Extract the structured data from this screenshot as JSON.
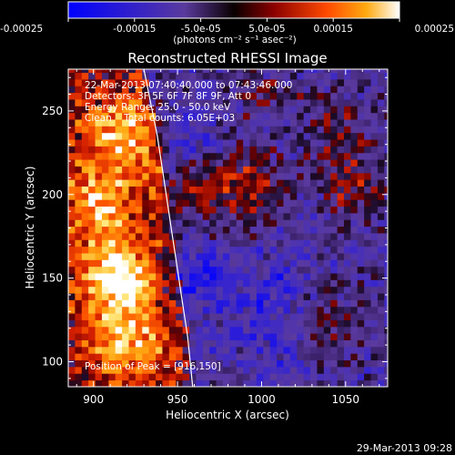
{
  "chart_data": {
    "type": "heatmap",
    "title": "Reconstructed RHESSI Image",
    "xlabel": "Heliocentric X (arcsec)",
    "ylabel": "Heliocentric Y (arcsec)",
    "xlim": [
      885,
      1075
    ],
    "ylim": [
      85,
      275
    ],
    "x_ticks": [
      900,
      950,
      1000,
      1050
    ],
    "y_ticks": [
      100,
      150,
      200,
      250
    ],
    "colorbar": {
      "min": -0.00025,
      "max": 0.00025,
      "ticks": [
        {
          "value": -0.00025,
          "label": "-0.00025"
        },
        {
          "value": -0.00015,
          "label": "-0.00015"
        },
        {
          "value": -5e-05,
          "label": "-5.0e-05"
        },
        {
          "value": 5e-05,
          "label": "5.0e-05"
        },
        {
          "value": 0.00015,
          "label": "0.00015"
        },
        {
          "value": 0.00025,
          "label": "0.00025"
        }
      ],
      "unit_label": "(photons cm⁻² s⁻¹ asec⁻²)"
    },
    "annotations": [
      "22-Mar-2013 07:40:40.000 to 07:43:46.000",
      "Detectors: 3F 5F 6F 7F 8F 9F, Att 0",
      "Energy Range: 25.0 - 50.0 keV",
      "Clean    Total counts: 6.05E+03"
    ],
    "peak_label": "Position of Peak = [916,150]",
    "peak": [
      916,
      150
    ],
    "limb_curve": [
      [
        930,
        275
      ],
      [
        934,
        255
      ],
      [
        938,
        235
      ],
      [
        941,
        215
      ],
      [
        944,
        195
      ],
      [
        947,
        175
      ],
      [
        950,
        155
      ],
      [
        953,
        135
      ],
      [
        956,
        115
      ],
      [
        958,
        95
      ],
      [
        959,
        85
      ]
    ],
    "hot_regions": [
      {
        "x": 915,
        "y": 150,
        "value": 0.00024
      },
      {
        "x": 918,
        "y": 238,
        "value": 0.00018
      },
      {
        "x": 903,
        "y": 195,
        "value": 0.00016
      },
      {
        "x": 920,
        "y": 110,
        "value": 0.00016
      },
      {
        "x": 990,
        "y": 205,
        "value": 0.00012
      },
      {
        "x": 960,
        "y": 205,
        "value": 0.0001
      },
      {
        "x": 1055,
        "y": 205,
        "value": 0.0001
      },
      {
        "x": 1045,
        "y": 240,
        "value": 8e-05
      },
      {
        "x": 1040,
        "y": 120,
        "value": 8e-05
      },
      {
        "x": 1000,
        "y": 260,
        "value": 6e-05
      }
    ],
    "cold_regions": [
      {
        "x": 960,
        "y": 150,
        "value": -0.00012
      },
      {
        "x": 1005,
        "y": 145,
        "value": -8e-05
      },
      {
        "x": 960,
        "y": 230,
        "value": -7e-05
      },
      {
        "x": 1005,
        "y": 110,
        "value": -6e-05
      }
    ]
  },
  "footer_timestamp": "29-Mar-2013 09:28"
}
